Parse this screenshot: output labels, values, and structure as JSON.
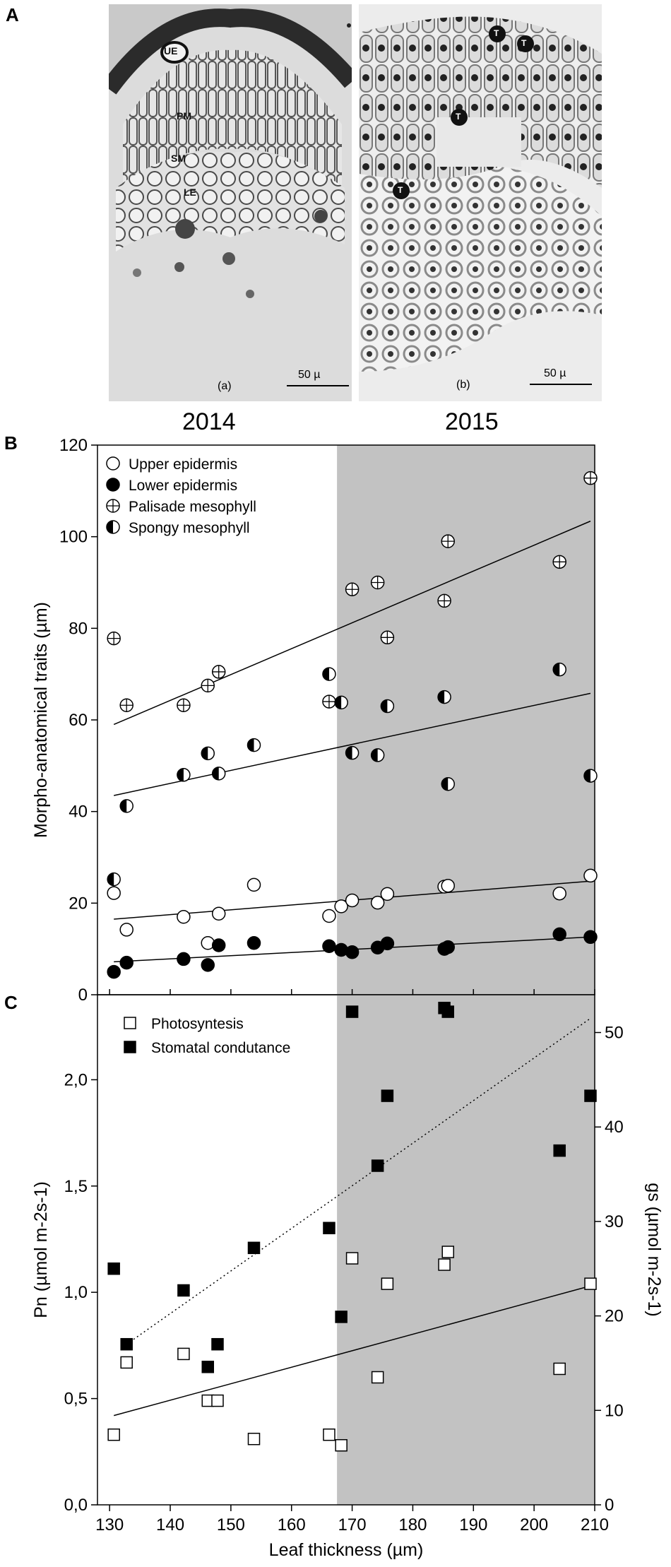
{
  "panel_a": {
    "letter": "A",
    "left": {
      "caption": "(a)",
      "scale": "50 µ",
      "labels": [
        "UE",
        "PM",
        "SM",
        "LE"
      ]
    },
    "right": {
      "caption": "(b)",
      "scale": "50 µ",
      "labels": [
        "T",
        "T",
        "T",
        "T"
      ]
    },
    "year_left": "2014",
    "year_right": "2015"
  },
  "panel_b_letter": "B",
  "panel_c_letter": "C",
  "chart_data": [
    {
      "type": "scatter",
      "id": "B",
      "ylabel": "Morpho-anatomical traits (µm)",
      "xlim": [
        128,
        210
      ],
      "ylim": [
        0,
        120
      ],
      "xticks": [
        130,
        140,
        150,
        160,
        170,
        180,
        190,
        200,
        210
      ],
      "yticks": [
        0,
        20,
        40,
        60,
        80,
        100,
        120
      ],
      "shaded_from_x": 167.5,
      "series": [
        {
          "name": "Upper epidermis",
          "marker": "open",
          "x": [
            130.7,
            132.8,
            142.2,
            146.2,
            148,
            153.8,
            166.2,
            168.2,
            170,
            174.2,
            175.8,
            185.2,
            185.8,
            204.2,
            209.3
          ],
          "y": [
            22.2,
            14.2,
            17,
            11.3,
            17.7,
            24,
            17.2,
            19.3,
            20.6,
            20.1,
            22,
            23.6,
            23.8,
            22.1,
            26
          ],
          "fit": [
            16.5,
            24.8
          ]
        },
        {
          "name": "Lower epidermis",
          "marker": "filled",
          "x": [
            130.7,
            132.8,
            142.2,
            146.2,
            148,
            153.8,
            166.2,
            168.2,
            170,
            174.2,
            175.8,
            185.2,
            185.8,
            204.2,
            209.3
          ],
          "y": [
            5,
            7,
            7.8,
            6.5,
            10.8,
            11.3,
            10.6,
            9.8,
            9.3,
            10.3,
            11.2,
            10,
            10.4,
            13.2,
            12.6
          ],
          "fit": [
            7.2,
            12.6
          ]
        },
        {
          "name": "Palisade mesophyll",
          "marker": "crossed",
          "x": [
            130.7,
            132.8,
            142.2,
            146.2,
            148,
            166.2,
            170,
            174.2,
            175.8,
            185.2,
            185.8,
            204.2,
            209.3
          ],
          "y": [
            77.8,
            63.2,
            63.2,
            67.5,
            70.5,
            64,
            88.5,
            90,
            78,
            86,
            99,
            94.5,
            112.8
          ],
          "fit": [
            59,
            103.4
          ]
        },
        {
          "name": "Spongy mesophyll",
          "marker": "half",
          "x": [
            130.7,
            132.8,
            142.2,
            146.2,
            148,
            153.8,
            166.2,
            168.2,
            170,
            174.2,
            175.8,
            185.2,
            185.8,
            204.2,
            209.3
          ],
          "y": [
            25.2,
            41.2,
            48,
            52.7,
            48.3,
            54.5,
            70,
            63.8,
            52.8,
            52.3,
            63,
            65,
            46,
            71,
            47.8
          ],
          "fit": [
            43.5,
            65.8
          ]
        }
      ]
    },
    {
      "type": "scatter",
      "id": "C",
      "xlabel": "Leaf thickness (µm)",
      "ylabel": "Pn (µmol m-2s-1)",
      "ylabel_right": "gs (µmol m-2s-1)",
      "xlim": [
        128,
        210
      ],
      "ylim": [
        0,
        2.4
      ],
      "ylim_right": [
        0,
        54
      ],
      "xticks": [
        130,
        140,
        150,
        160,
        170,
        180,
        190,
        200,
        210
      ],
      "yticks": [
        "0,0",
        "0,5",
        "1,0",
        "1,5",
        "2,0"
      ],
      "yticks_right": [
        0,
        10,
        20,
        30,
        40,
        50
      ],
      "shaded_from_x": 167.5,
      "series": [
        {
          "name": "Photosyntesis",
          "marker": "open-square",
          "axis": "left",
          "x": [
            130.7,
            132.8,
            142.2,
            146.2,
            147.8,
            153.8,
            166.2,
            168.2,
            170,
            174.2,
            175.8,
            185.2,
            185.8,
            204.2,
            209.3
          ],
          "y": [
            0.33,
            0.67,
            0.71,
            0.49,
            0.49,
            0.31,
            0.33,
            0.28,
            1.16,
            0.6,
            1.04,
            1.13,
            1.19,
            0.64,
            1.04
          ],
          "fit": [
            0.42,
            1.03
          ],
          "fit_style": "solid"
        },
        {
          "name": "Stomatal condutance",
          "marker": "filled-square",
          "axis": "right",
          "x": [
            130.7,
            132.8,
            142.2,
            146.2,
            147.8,
            153.8,
            166.2,
            168.2,
            170,
            174.2,
            175.8,
            185.2,
            185.8,
            204.2,
            209.3
          ],
          "y": [
            25,
            17,
            22.7,
            14.6,
            17,
            27.2,
            29.3,
            19.9,
            52.2,
            35.9,
            43.3,
            52.6,
            52.2,
            37.5,
            43.3
          ],
          "fit": [
            17,
            51.5
          ],
          "fit_style": "dotted"
        }
      ]
    }
  ]
}
